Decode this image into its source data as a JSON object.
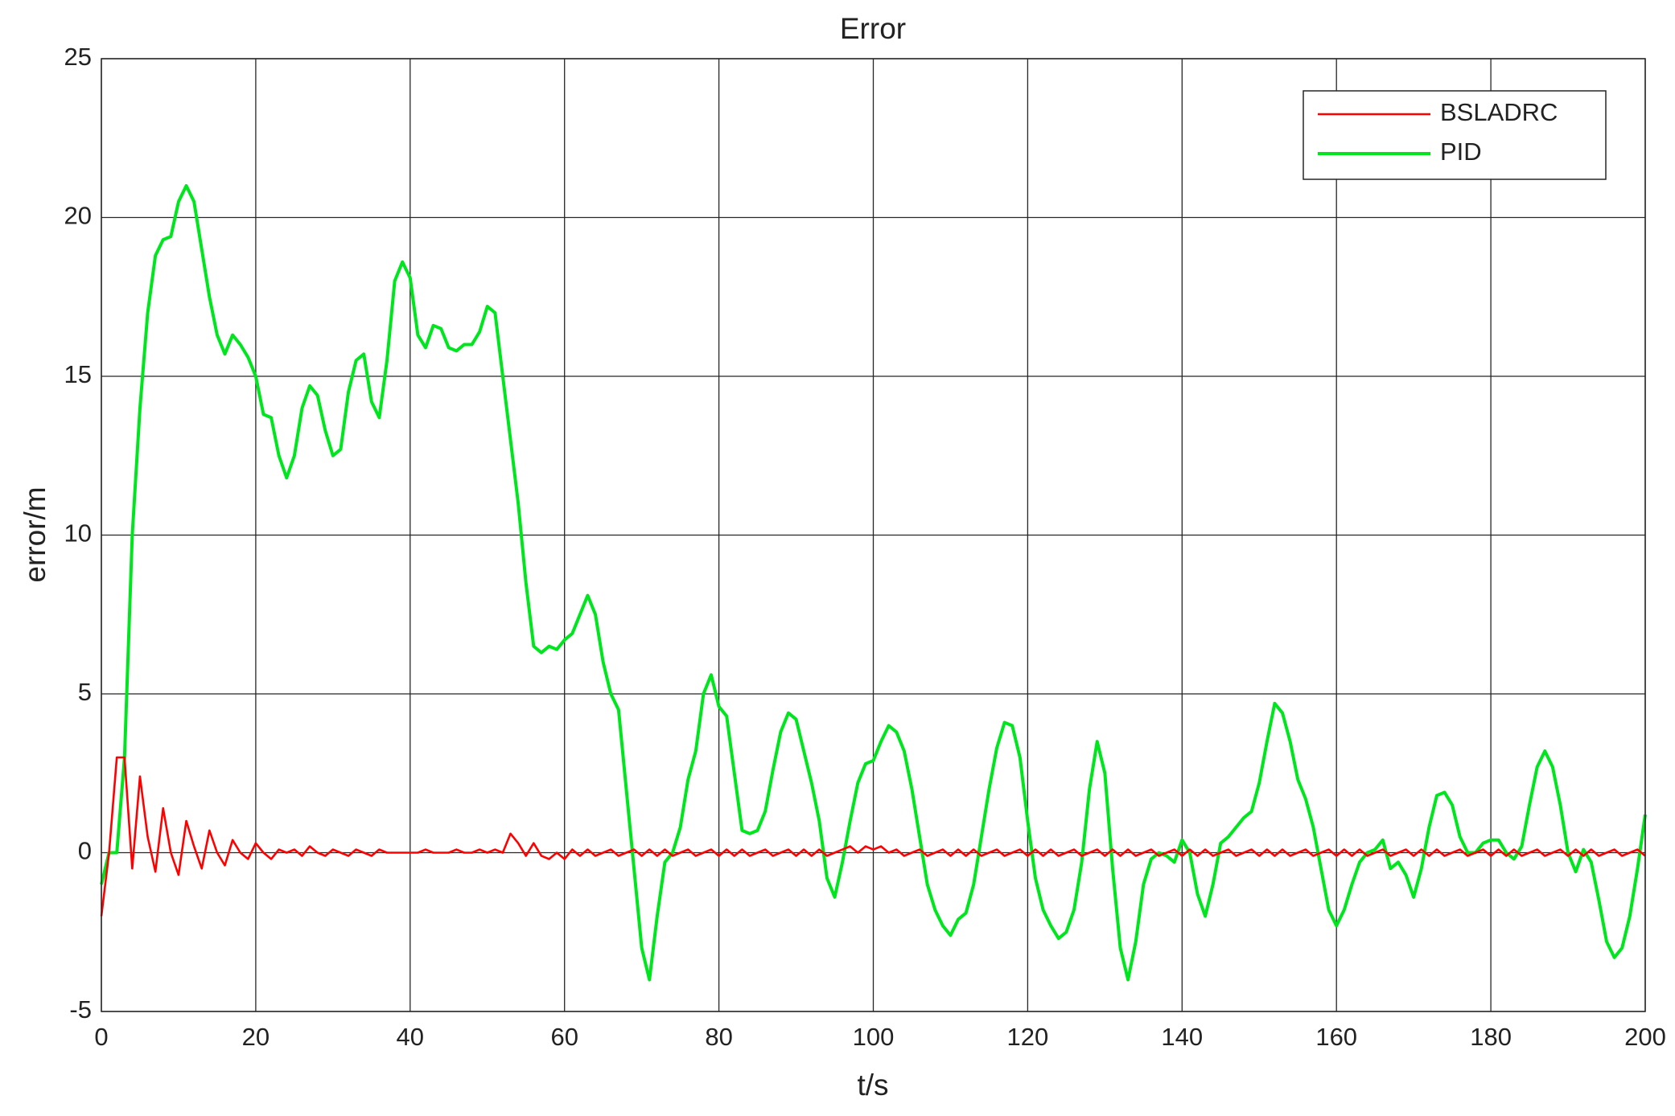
{
  "chart_data": {
    "type": "line",
    "title": "Error",
    "x_label": "t/s",
    "y_label": "error/m",
    "x": [
      0,
      1,
      2,
      3,
      4,
      5,
      6,
      7,
      8,
      9,
      10,
      11,
      12,
      13,
      14,
      15,
      16,
      17,
      18,
      19,
      20,
      21,
      22,
      23,
      24,
      25,
      26,
      27,
      28,
      29,
      30,
      31,
      32,
      33,
      34,
      35,
      36,
      37,
      38,
      39,
      40,
      41,
      42,
      43,
      44,
      45,
      46,
      47,
      48,
      49,
      50,
      51,
      52,
      53,
      54,
      55,
      56,
      57,
      58,
      59,
      60,
      61,
      62,
      63,
      64,
      65,
      66,
      67,
      68,
      69,
      70,
      71,
      72,
      73,
      74,
      75,
      76,
      77,
      78,
      79,
      80,
      81,
      82,
      83,
      84,
      85,
      86,
      87,
      88,
      89,
      90,
      91,
      92,
      93,
      94,
      95,
      96,
      97,
      98,
      99,
      100,
      101,
      102,
      103,
      104,
      105,
      106,
      107,
      108,
      109,
      110,
      111,
      112,
      113,
      114,
      115,
      116,
      117,
      118,
      119,
      120,
      121,
      122,
      123,
      124,
      125,
      126,
      127,
      128,
      129,
      130,
      131,
      132,
      133,
      134,
      135,
      136,
      137,
      138,
      139,
      140,
      141,
      142,
      143,
      144,
      145,
      146,
      147,
      148,
      149,
      150,
      151,
      152,
      153,
      154,
      155,
      156,
      157,
      158,
      159,
      160,
      161,
      162,
      163,
      164,
      165,
      166,
      167,
      168,
      169,
      170,
      171,
      172,
      173,
      174,
      175,
      176,
      177,
      178,
      179,
      180,
      181,
      182,
      183,
      184,
      185,
      186,
      187,
      188,
      189,
      190,
      191,
      192,
      193,
      194,
      195,
      196,
      197,
      198,
      199,
      200
    ],
    "series": [
      {
        "name": "BSLADRC",
        "color": "#ff0000",
        "values": [
          -2,
          0,
          3,
          3,
          -0.5,
          2.4,
          0.5,
          -0.6,
          1.4,
          0,
          -0.7,
          1,
          0.2,
          -0.5,
          0.7,
          0,
          -0.4,
          0.4,
          0,
          -0.2,
          0.3,
          0,
          -0.2,
          0.1,
          0,
          0.1,
          -0.1,
          0.2,
          0,
          -0.1,
          0.1,
          0,
          -0.1,
          0.1,
          0,
          -0.1,
          0.1,
          0,
          0,
          0,
          0,
          0,
          0.1,
          0,
          0,
          0,
          0.1,
          0,
          0,
          0.1,
          0,
          0.1,
          0,
          0.6,
          0.3,
          -0.1,
          0.3,
          -0.1,
          -0.2,
          0,
          -0.2,
          0.1,
          -0.1,
          0.1,
          -0.1,
          0,
          0.1,
          -0.1,
          0,
          0.1,
          -0.1,
          0.1,
          -0.1,
          0.1,
          -0.1,
          0,
          0.1,
          -0.1,
          0,
          0.1,
          -0.1,
          0.1,
          -0.1,
          0.1,
          -0.1,
          0,
          0.1,
          -0.1,
          0,
          0.1,
          -0.1,
          0.1,
          -0.1,
          0.1,
          -0.1,
          0,
          0.1,
          0.2,
          0,
          0.2,
          0.1,
          0.2,
          0,
          0.1,
          -0.1,
          0,
          0.1,
          -0.1,
          0,
          0.1,
          -0.1,
          0.1,
          -0.1,
          0.1,
          -0.1,
          0,
          0.1,
          -0.1,
          0,
          0.1,
          -0.1,
          0.1,
          -0.1,
          0.1,
          -0.1,
          0,
          0.1,
          -0.1,
          0,
          0.1,
          -0.1,
          0.1,
          -0.1,
          0.1,
          -0.1,
          0,
          0.1,
          -0.1,
          0,
          0.1,
          -0.1,
          0.1,
          -0.1,
          0.1,
          -0.1,
          0,
          0.1,
          -0.1,
          0,
          0.1,
          -0.1,
          0.1,
          -0.1,
          0.1,
          -0.1,
          0,
          0.1,
          -0.1,
          0,
          0.1,
          -0.1,
          0.1,
          -0.1,
          0.1,
          -0.1,
          0,
          0.1,
          -0.1,
          0,
          0.1,
          -0.1,
          0.1,
          -0.1,
          0.1,
          -0.1,
          0,
          0.1,
          -0.1,
          0,
          0.1,
          -0.1,
          0.1,
          -0.1,
          0.1,
          -0.1,
          0,
          0.1,
          -0.1,
          0,
          0.1,
          -0.1,
          0.1,
          -0.1,
          0.1,
          -0.1,
          0,
          0.1,
          -0.1,
          0,
          0.1,
          -0.1
        ]
      },
      {
        "name": "PID",
        "color": "#00e61e",
        "values": [
          -1,
          0,
          0,
          3,
          10,
          14,
          17,
          18.8,
          19.3,
          19.4,
          20.5,
          21,
          20.5,
          19,
          17.5,
          16.3,
          15.7,
          16.3,
          16,
          15.6,
          15,
          13.8,
          13.7,
          12.5,
          11.8,
          12.5,
          14,
          14.7,
          14.4,
          13.3,
          12.5,
          12.7,
          14.5,
          15.5,
          15.7,
          14.2,
          13.7,
          15.5,
          18,
          18.6,
          18.1,
          16.3,
          15.9,
          16.6,
          16.5,
          15.9,
          15.8,
          16,
          16,
          16.4,
          17.2,
          17,
          15,
          13,
          11,
          8.5,
          6.5,
          6.3,
          6.5,
          6.4,
          6.7,
          6.9,
          7.5,
          8.1,
          7.5,
          6,
          5,
          4.5,
          2,
          -0.5,
          -3,
          -4,
          -2,
          -0.3,
          0,
          0.8,
          2.3,
          3.2,
          5,
          5.6,
          4.6,
          4.3,
          2.5,
          0.7,
          0.6,
          0.7,
          1.3,
          2.6,
          3.8,
          4.4,
          4.2,
          3.2,
          2.2,
          1,
          -0.8,
          -1.4,
          -0.3,
          1,
          2.2,
          2.8,
          2.9,
          3.5,
          4,
          3.8,
          3.2,
          2,
          0.5,
          -1,
          -1.8,
          -2.3,
          -2.6,
          -2.1,
          -1.9,
          -1,
          0.5,
          2,
          3.3,
          4.1,
          4,
          3,
          1,
          -0.8,
          -1.8,
          -2.3,
          -2.7,
          -2.5,
          -1.8,
          -0.3,
          2,
          3.5,
          2.5,
          -0.5,
          -3,
          -4,
          -2.8,
          -1,
          -0.2,
          0,
          -0.1,
          -0.3,
          0.4,
          0,
          -1.3,
          -2,
          -1,
          0.3,
          0.5,
          0.8,
          1.1,
          1.3,
          2.2,
          3.5,
          4.7,
          4.4,
          3.5,
          2.3,
          1.7,
          0.8,
          -0.5,
          -1.8,
          -2.3,
          -1.8,
          -1,
          -0.3,
          0,
          0.1,
          0.4,
          -0.5,
          -0.3,
          -0.7,
          -1.4,
          -0.5,
          0.8,
          1.8,
          1.9,
          1.5,
          0.5,
          0,
          0,
          0.3,
          0.4,
          0.4,
          0,
          -0.2,
          0.2,
          1.5,
          2.7,
          3.2,
          2.7,
          1.5,
          0,
          -0.6,
          0.1,
          -0.3,
          -1.5,
          -2.8,
          -3.3,
          -3,
          -2,
          -0.5,
          1.2
        ]
      }
    ],
    "xlim": [
      0,
      200
    ],
    "xticks": [
      0,
      20,
      40,
      60,
      80,
      100,
      120,
      140,
      160,
      180,
      200
    ],
    "ylim": [
      -5,
      25
    ],
    "yticks": [
      -5,
      0,
      5,
      10,
      15,
      20,
      25
    ],
    "grid": true,
    "legend": "upper right"
  }
}
